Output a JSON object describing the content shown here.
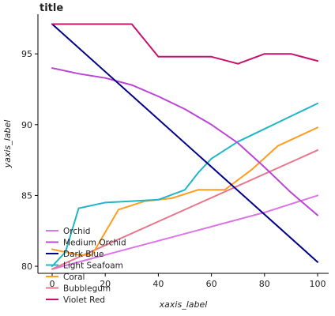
{
  "chart_data": {
    "type": "line",
    "title": "title",
    "xlabel": "xaxis_label",
    "ylabel": "yaxis_label",
    "xlim": [
      0,
      100
    ],
    "ylim": [
      79.5,
      97.8
    ],
    "xticks": [
      0,
      20,
      40,
      60,
      80,
      100
    ],
    "yticks": [
      80,
      85,
      90,
      95
    ],
    "grid": false,
    "legend_position": "center-left",
    "series": [
      {
        "name": "Orchid",
        "color": "#dd74e5",
        "x": [
          0,
          20,
          40,
          60,
          80,
          100
        ],
        "y": [
          79.8,
          80.8,
          81.8,
          82.8,
          83.8,
          85.0
        ]
      },
      {
        "name": "Medium Orchid",
        "color": "#bb45d6",
        "x": [
          0,
          10,
          20,
          30,
          40,
          50,
          60,
          70,
          80,
          90,
          100
        ],
        "y": [
          94.0,
          93.6,
          93.3,
          92.8,
          92.0,
          91.1,
          90.0,
          88.7,
          87.0,
          85.2,
          83.6
        ]
      },
      {
        "name": "Dark Blue",
        "color": "#00008b",
        "x": [
          0,
          100
        ],
        "y": [
          97.1,
          80.3
        ]
      },
      {
        "name": "Light Seafoam",
        "color": "#20b5c8",
        "x": [
          0,
          5,
          10,
          20,
          30,
          40,
          50,
          55,
          60,
          70,
          80,
          90,
          100
        ],
        "y": [
          80.0,
          81.0,
          84.1,
          84.5,
          84.6,
          84.7,
          85.4,
          86.6,
          87.6,
          88.8,
          89.7,
          90.6,
          91.5
        ]
      },
      {
        "name": "Coral",
        "color": "#ff9d1e",
        "x": [
          0,
          10,
          15,
          25,
          35,
          45,
          55,
          65,
          75,
          85,
          100
        ],
        "y": [
          81.2,
          80.8,
          80.8,
          84.0,
          84.6,
          84.8,
          85.4,
          85.4,
          86.8,
          88.5,
          89.8
        ]
      },
      {
        "name": "Bubblegum",
        "color": "#e8778b",
        "x": [
          0,
          100
        ],
        "y": [
          79.8,
          88.2
        ]
      },
      {
        "name": "Violet Red",
        "color": "#c8116d",
        "x": [
          0,
          10,
          20,
          30,
          40,
          50,
          60,
          70,
          80,
          90,
          100
        ],
        "y": [
          97.1,
          97.1,
          97.1,
          97.1,
          94.8,
          94.8,
          94.8,
          94.3,
          95.0,
          95.0,
          94.5
        ]
      }
    ],
    "legend_order": [
      "Orchid",
      "Medium Orchid",
      "Dark Blue",
      "Light Seafoam",
      "Coral",
      "Bubblegum",
      "Violet Red"
    ]
  }
}
